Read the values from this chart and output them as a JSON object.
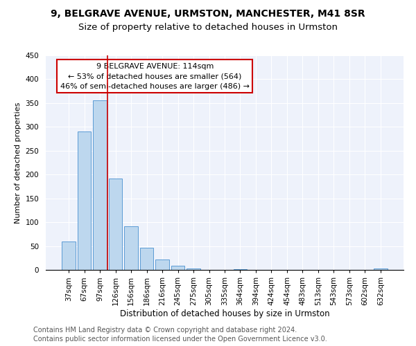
{
  "title1": "9, BELGRAVE AVENUE, URMSTON, MANCHESTER, M41 8SR",
  "title2": "Size of property relative to detached houses in Urmston",
  "xlabel": "Distribution of detached houses by size in Urmston",
  "ylabel": "Number of detached properties",
  "bar_labels": [
    "37sqm",
    "67sqm",
    "97sqm",
    "126sqm",
    "156sqm",
    "186sqm",
    "216sqm",
    "245sqm",
    "275sqm",
    "305sqm",
    "335sqm",
    "364sqm",
    "394sqm",
    "424sqm",
    "454sqm",
    "483sqm",
    "513sqm",
    "543sqm",
    "573sqm",
    "602sqm",
    "632sqm"
  ],
  "bar_values": [
    60,
    290,
    355,
    192,
    91,
    46,
    22,
    8,
    3,
    0,
    0,
    2,
    0,
    0,
    0,
    0,
    0,
    0,
    0,
    0,
    3
  ],
  "bar_color": "#bdd7ee",
  "bar_edge_color": "#5b9bd5",
  "vline_color": "#cc0000",
  "vline_index": 2.5,
  "annotation_line1": "9 BELGRAVE AVENUE: 114sqm",
  "annotation_line2": "← 53% of detached houses are smaller (564)",
  "annotation_line3": "46% of semi-detached houses are larger (486) →",
  "ylim": [
    0,
    450
  ],
  "yticks": [
    0,
    50,
    100,
    150,
    200,
    250,
    300,
    350,
    400,
    450
  ],
  "footer1": "Contains HM Land Registry data © Crown copyright and database right 2024.",
  "footer2": "Contains public sector information licensed under the Open Government Licence v3.0.",
  "bg_color": "#eef2fb",
  "title1_fontsize": 10,
  "title1_fontweight": "bold",
  "title2_fontsize": 9.5,
  "ylabel_fontsize": 8,
  "xlabel_fontsize": 8.5,
  "tick_fontsize": 7.5,
  "annotation_fontsize": 8,
  "footer_fontsize": 7
}
